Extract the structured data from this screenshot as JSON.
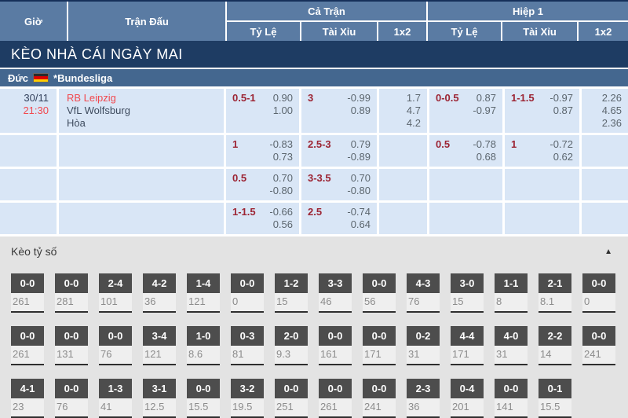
{
  "header": {
    "col_time": "Giờ",
    "col_match": "Trận Đấu",
    "group_full": "Cả Trận",
    "group_half": "Hiệp 1",
    "sub_handicap": "Tỷ Lệ",
    "sub_over_under": "Tài Xỉu",
    "sub_1x2": "1x2"
  },
  "banner": {
    "title": "KÈO NHÀ CÁI NGÀY MAI"
  },
  "league": {
    "country": "Đức",
    "flag_icon": "germany-flag",
    "name": "*Bundesliga"
  },
  "match": {
    "date": "30/11",
    "time": "21:30",
    "home": "RB Leipzig",
    "away": "VfL Wolfsburg",
    "draw_label": "Hòa"
  },
  "odds_rows": [
    {
      "ft_handicap": {
        "line": "0.5-1",
        "top": "0.90",
        "bottom": "1.00"
      },
      "ft_over_under": {
        "line": "3",
        "top": "-0.99",
        "bottom": "0.89"
      },
      "ft_1x2": {
        "home": "1.7",
        "draw": "4.7",
        "away": "4.2"
      },
      "h1_handicap": {
        "line": "0-0.5",
        "top": "0.87",
        "bottom": "-0.97"
      },
      "h1_over_under": {
        "line": "1-1.5",
        "top": "-0.97",
        "bottom": "0.87"
      },
      "h1_1x2": {
        "home": "2.26",
        "draw": "4.65",
        "away": "2.36"
      }
    },
    {
      "ft_handicap": {
        "line": "1",
        "top": "-0.83",
        "bottom": "0.73"
      },
      "ft_over_under": {
        "line": "2.5-3",
        "top": "0.79",
        "bottom": "-0.89"
      },
      "h1_handicap": {
        "line": "0.5",
        "top": "-0.78",
        "bottom": "0.68"
      },
      "h1_over_under": {
        "line": "1",
        "top": "-0.72",
        "bottom": "0.62"
      }
    },
    {
      "ft_handicap": {
        "line": "0.5",
        "top": "0.70",
        "bottom": "-0.80"
      },
      "ft_over_under": {
        "line": "3-3.5",
        "top": "0.70",
        "bottom": "-0.80"
      }
    },
    {
      "ft_handicap": {
        "line": "1-1.5",
        "top": "-0.66",
        "bottom": "0.56"
      },
      "ft_over_under": {
        "line": "2.5",
        "top": "-0.74",
        "bottom": "0.64"
      }
    }
  ],
  "score_section": {
    "title": "Kèo tỷ số",
    "collapse_icon": "▲",
    "rows": [
      [
        {
          "score": "0-0",
          "odds": "261"
        },
        {
          "score": "0-0",
          "odds": "281"
        },
        {
          "score": "2-4",
          "odds": "101"
        },
        {
          "score": "4-2",
          "odds": "36"
        },
        {
          "score": "1-4",
          "odds": "121"
        },
        {
          "score": "0-0",
          "odds": "0"
        },
        {
          "score": "1-2",
          "odds": "15"
        },
        {
          "score": "3-3",
          "odds": "46"
        },
        {
          "score": "0-0",
          "odds": "56"
        },
        {
          "score": "4-3",
          "odds": "76"
        },
        {
          "score": "3-0",
          "odds": "15"
        },
        {
          "score": "1-1",
          "odds": "8"
        },
        {
          "score": "2-1",
          "odds": "8.1"
        },
        {
          "score": "0-0",
          "odds": "0"
        }
      ],
      [
        {
          "score": "0-0",
          "odds": "261"
        },
        {
          "score": "0-0",
          "odds": "131"
        },
        {
          "score": "0-0",
          "odds": "76"
        },
        {
          "score": "3-4",
          "odds": "121"
        },
        {
          "score": "1-0",
          "odds": "8.6"
        },
        {
          "score": "0-3",
          "odds": "81"
        },
        {
          "score": "2-0",
          "odds": "9.3"
        },
        {
          "score": "0-0",
          "odds": "161"
        },
        {
          "score": "0-0",
          "odds": "171"
        },
        {
          "score": "0-2",
          "odds": "31"
        },
        {
          "score": "4-4",
          "odds": "171"
        },
        {
          "score": "4-0",
          "odds": "31"
        },
        {
          "score": "2-2",
          "odds": "14"
        },
        {
          "score": "0-0",
          "odds": "241"
        }
      ],
      [
        {
          "score": "4-1",
          "odds": "23"
        },
        {
          "score": "0-0",
          "odds": "76"
        },
        {
          "score": "1-3",
          "odds": "41"
        },
        {
          "score": "3-1",
          "odds": "12.5"
        },
        {
          "score": "0-0",
          "odds": "15.5"
        },
        {
          "score": "3-2",
          "odds": "19.5"
        },
        {
          "score": "0-0",
          "odds": "251"
        },
        {
          "score": "0-0",
          "odds": "261"
        },
        {
          "score": "0-0",
          "odds": "241"
        },
        {
          "score": "2-3",
          "odds": "36"
        },
        {
          "score": "0-4",
          "odds": "201"
        },
        {
          "score": "0-0",
          "odds": "141"
        },
        {
          "score": "0-1",
          "odds": "15.5"
        },
        {
          "score": "",
          "odds": ""
        }
      ]
    ]
  },
  "colors": {
    "header_blue": "#5a7ba3",
    "banner_navy": "#1e3c63",
    "league_blue": "#44678f",
    "row_light_blue": "#d9e6f6",
    "handicap_maroon": "#9c2433",
    "odds_gray": "#5c666e",
    "accent_red": "#f2484e",
    "section_gray": "#e3e3e3",
    "score_box_dark": "#4d4d4d"
  }
}
